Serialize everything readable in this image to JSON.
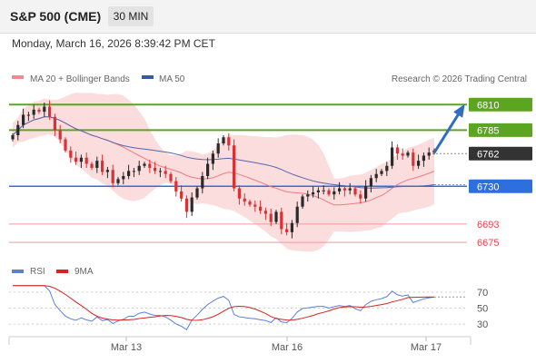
{
  "header": {
    "instrument": "S&P 500 (CME)",
    "timeframe": "30 MIN"
  },
  "date_line": "Monday, March 16, 2026 8:39:42 PM CET",
  "legend": {
    "ma20": "MA 20 + Bollinger Bands",
    "ma50": "MA 50",
    "credit": "Research © 2026 Trading Central",
    "rsi": "RSI",
    "rsi_ma": "9MA"
  },
  "colors": {
    "resistance": "#5ba521",
    "support": "#2e6fe0",
    "lower_support": "#e8474f",
    "current": "#333333",
    "up_candle": "#2a2a2a",
    "down_candle": "#d83234",
    "bollinger_band": "#fbd9da",
    "ma20": "#ef7b80",
    "ma50": "#5168a8",
    "rsi": "#5b80d6",
    "rsi_ma": "#dd2020",
    "arrow": "#2f6cc2"
  },
  "chart_data": [
    {
      "type": "candlestick",
      "title": "S&P 500 (CME)",
      "timeframe": "30 MIN",
      "x_ticks": [
        "Mar 13",
        "Mar 16",
        "Mar 17"
      ],
      "ylim": [
        6668,
        6828
      ],
      "levels": [
        {
          "label": "6810",
          "value": 6810,
          "kind": "resistance"
        },
        {
          "label": "6785",
          "value": 6785,
          "kind": "resistance"
        },
        {
          "label": "6762",
          "value": 6762,
          "kind": "current"
        },
        {
          "label": "6730",
          "value": 6730,
          "kind": "support"
        },
        {
          "label": "6693",
          "value": 6693,
          "kind": "lower_support"
        },
        {
          "label": "6675",
          "value": 6675,
          "kind": "lower_support"
        }
      ],
      "forecast_arrow": {
        "from": 6762,
        "to": 6810,
        "direction": "up"
      },
      "series": [
        {
          "name": "MA 20 + Bollinger Bands",
          "kind": "ma20"
        },
        {
          "name": "MA 50",
          "kind": "ma50"
        }
      ],
      "closes": [
        6780,
        6790,
        6800,
        6800,
        6805,
        6803,
        6808,
        6798,
        6785,
        6776,
        6765,
        6758,
        6754,
        6758,
        6752,
        6748,
        6755,
        6744,
        6746,
        6733,
        6737,
        6740,
        6745,
        6745,
        6750,
        6752,
        6748,
        6745,
        6745,
        6742,
        6735,
        6725,
        6718,
        6705,
        6719,
        6728,
        6740,
        6752,
        6762,
        6772,
        6778,
        6770,
        6728,
        6718,
        6715,
        6712,
        6710,
        6706,
        6703,
        6695,
        6705,
        6688,
        6685,
        6694,
        6710,
        6720,
        6722,
        6724,
        6726,
        6726,
        6722,
        6725,
        6728,
        6726,
        6728,
        6722,
        6718,
        6730,
        6738,
        6742,
        6745,
        6750,
        6768,
        6762,
        6760,
        6763,
        6750,
        6755,
        6760,
        6763,
        6765
      ],
      "candle_count": 81
    },
    {
      "type": "line",
      "title": "RSI",
      "ylim": [
        20,
        80
      ],
      "yticks": [
        30,
        50,
        70
      ],
      "reference_line": 60,
      "series": [
        {
          "name": "RSI",
          "kind": "rsi"
        },
        {
          "name": "9MA",
          "kind": "rsi_ma"
        }
      ]
    }
  ]
}
